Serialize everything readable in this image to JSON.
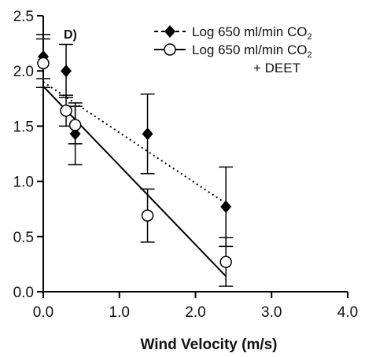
{
  "chart_data": {
    "type": "scatter",
    "panel_label": "D)",
    "xlabel": "Wind Velocity (m/s)",
    "ylabel": "",
    "xlim": [
      0,
      4
    ],
    "ylim": [
      0,
      2.5
    ],
    "x_ticks": [
      "0.0",
      "1.0",
      "2.0",
      "3.0",
      "4.0"
    ],
    "y_ticks": [
      "0.0",
      "0.5",
      "1.0",
      "1.5",
      "2.0",
      "2.5"
    ],
    "grid": false,
    "legend_position": "top-right",
    "series": [
      {
        "name": "Log 650 ml/min CO",
        "name_subscript": "2",
        "marker": "filled-diamond",
        "line_style": "dashed",
        "color": "#000000",
        "points": [
          {
            "x": 0.0,
            "y": 2.13,
            "err": 0.2
          },
          {
            "x": 0.3,
            "y": 2.0,
            "err": 0.24
          },
          {
            "x": 0.42,
            "y": 1.43,
            "err": 0.28
          },
          {
            "x": 1.37,
            "y": 1.43,
            "err": 0.36
          },
          {
            "x": 2.4,
            "y": 0.77,
            "err": 0.36
          }
        ],
        "fit": {
          "x": [
            0.0,
            2.4
          ],
          "y": [
            1.9,
            0.8
          ]
        }
      },
      {
        "name": "Log 650 ml/min CO",
        "name_subscript": "2",
        "name_line2": "+ DEET",
        "marker": "open-circle",
        "line_style": "solid",
        "color": "#000000",
        "points": [
          {
            "x": 0.0,
            "y": 2.07,
            "err": 0.22
          },
          {
            "x": 0.3,
            "y": 1.64,
            "err": 0.14
          },
          {
            "x": 0.42,
            "y": 1.51,
            "err": 0.17
          },
          {
            "x": 1.37,
            "y": 0.69,
            "err": 0.24
          },
          {
            "x": 2.4,
            "y": 0.27,
            "err": 0.22
          }
        ],
        "fit": {
          "x": [
            0.0,
            2.4
          ],
          "y": [
            1.86,
            0.14
          ]
        }
      }
    ]
  }
}
